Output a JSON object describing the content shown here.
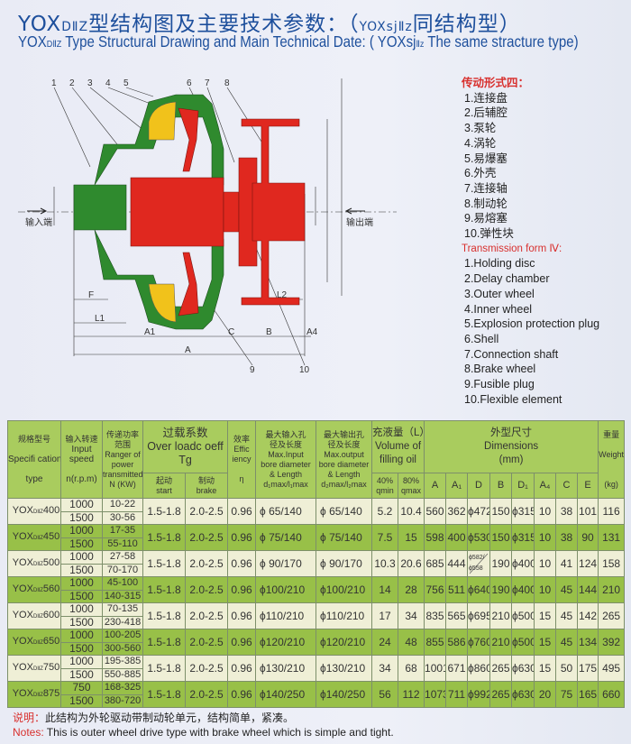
{
  "title": {
    "cn_prefix": "YOX",
    "cn_sub": "DⅡZ",
    "cn_text": "型结构图及主要技术参数：（",
    "cn_paren_prefix": "YOXsj",
    "cn_paren_sub": "Ⅱz",
    "cn_suffix": "同结构型）",
    "en_prefix": "YOX",
    "en_sub": "DⅡZ",
    "en_text": " Type Structural Drawing and Main Technical Date: ( YOXsj",
    "en_paren_sub": "Ⅱz",
    "en_suffix": " The same stracture type)"
  },
  "drawing": {
    "part_numbers": [
      "1",
      "2",
      "3",
      "4",
      "5",
      "6",
      "7",
      "8",
      "9",
      "10"
    ],
    "input_label": "输入端",
    "output_label": "输出端",
    "dims": {
      "F": "F",
      "L1": "L1",
      "A1": "A1",
      "A": "A",
      "C": "C",
      "B": "B",
      "A4": "A4",
      "L2": "L2"
    },
    "colors": {
      "housing": "#2f8a2e",
      "runner": "#e0281f",
      "oil": "#f1c21b"
    }
  },
  "legend": {
    "cn_heading": "传动形式四：",
    "cn_items": [
      "1.连接盘",
      "2.后辅腔",
      "3.泵轮",
      "4.涡轮",
      "5.易爆塞",
      "6.外壳",
      "7.连接轴",
      "8.制动轮",
      "9.易熔塞",
      "10.弹性块"
    ],
    "en_heading": "Transmission form Ⅳ:",
    "en_items": [
      "1.Holding disc",
      "2.Delay chamber",
      "3.Outer wheel",
      "4.Inner wheel",
      "5.Explosion protection plug",
      "6.Shell",
      "7.Connection shaft",
      "8.Brake wheel",
      "9.Fusible plug",
      "10.Flexible element"
    ]
  },
  "table": {
    "headers": {
      "spec": [
        "规格型号",
        "Specifi cation",
        "type"
      ],
      "speed": [
        "输入转速",
        "Input",
        "speed",
        "n(r.p.m)"
      ],
      "power": [
        "传递功率",
        "范围",
        "Ranger of",
        "power",
        "transmitted",
        "N (KW)"
      ],
      "overload": [
        "过载系数",
        "Over loadc oeff",
        "Tg"
      ],
      "start": [
        "起动",
        "start"
      ],
      "brake": [
        "制动",
        "brake"
      ],
      "eff": [
        "效率",
        "Effic",
        "iency",
        "η"
      ],
      "in_bore": [
        "最大输入孔",
        "径及长度",
        "Max.Input",
        "bore diameter",
        "& Length",
        "d₁max/l₁max"
      ],
      "out_bore": [
        "最大输出孔",
        "径及长度",
        "Max.output",
        "bore diameter",
        "& Length",
        "d₂max/l₂max"
      ],
      "oil": [
        "充液量（L）",
        "Volume of",
        "filling oil"
      ],
      "qmin": [
        "40%",
        "qmin"
      ],
      "qmax": [
        "80%",
        "qmax"
      ],
      "dims": [
        "外型尺寸",
        "Dimensions",
        "(mm)"
      ],
      "dim_cols": [
        "A",
        "A₁",
        "D",
        "B",
        "D₁",
        "A₄",
        "C",
        "E"
      ],
      "weight": [
        "重量",
        "Weight",
        "(kg)"
      ]
    },
    "rows": [
      {
        "prefix": "YOX",
        "sub": "DⅡZ",
        "size": "400",
        "speeds": [
          "1000",
          "1500"
        ],
        "powers": [
          "10-22",
          "30-56"
        ],
        "start": "1.5-1.8",
        "brake": "2.0-2.5",
        "eff": "0.96",
        "in_bore": "ϕ 65/140",
        "out_bore": "ϕ 65/140",
        "qmin": "5.2",
        "qmax": "10.4",
        "A": "560",
        "A1": "362",
        "D": "ϕ472",
        "B": "150",
        "D1": "ϕ315",
        "A4": "10",
        "C": "38",
        "E": "101",
        "weight": "116"
      },
      {
        "prefix": "YOX",
        "sub": "DⅡZ",
        "size": "450",
        "speeds": [
          "1000",
          "1500"
        ],
        "powers": [
          "17-35",
          "55-110"
        ],
        "start": "1.5-1.8",
        "brake": "2.0-2.5",
        "eff": "0.96",
        "in_bore": "ϕ 75/140",
        "out_bore": "ϕ 75/140",
        "qmin": "7.5",
        "qmax": "15",
        "A": "598",
        "A1": "400",
        "D": "ϕ530",
        "B": "150",
        "D1": "ϕ315",
        "A4": "10",
        "C": "38",
        "E": "90",
        "weight": "131"
      },
      {
        "prefix": "YOX",
        "sub": "DⅡZ",
        "size": "500",
        "speeds": [
          "1000",
          "1500"
        ],
        "powers": [
          "27-58",
          "70-170"
        ],
        "start": "1.5-1.8",
        "brake": "2.0-2.5",
        "eff": "0.96",
        "in_bore": "ϕ 90/170",
        "out_bore": "ϕ 90/170",
        "qmin": "10.3",
        "qmax": "20.6",
        "A": "685",
        "A1": "444",
        "D": "ϕ582/ϕ558",
        "B": "190",
        "D1": "ϕ400",
        "A4": "10",
        "C": "41",
        "E": "124",
        "weight": "158"
      },
      {
        "prefix": "YOX",
        "sub": "DⅡZ",
        "size": "560",
        "speeds": [
          "1000",
          "1500"
        ],
        "powers": [
          "45-100",
          "140-315"
        ],
        "start": "1.5-1.8",
        "brake": "2.0-2.5",
        "eff": "0.96",
        "in_bore": "ϕ100/210",
        "out_bore": "ϕ100/210",
        "qmin": "14",
        "qmax": "28",
        "A": "756",
        "A1": "511",
        "D": "ϕ640",
        "B": "190",
        "D1": "ϕ400",
        "A4": "10",
        "C": "45",
        "E": "144",
        "weight": "210"
      },
      {
        "prefix": "YOX",
        "sub": "DⅡZ",
        "size": "600",
        "speeds": [
          "1000",
          "1500"
        ],
        "powers": [
          "70-135",
          "230-418"
        ],
        "start": "1.5-1.8",
        "brake": "2.0-2.5",
        "eff": "0.96",
        "in_bore": "ϕ110/210",
        "out_bore": "ϕ110/210",
        "qmin": "17",
        "qmax": "34",
        "A": "835",
        "A1": "565",
        "D": "ϕ695",
        "B": "210",
        "D1": "ϕ500",
        "A4": "15",
        "C": "45",
        "E": "142",
        "weight": "265"
      },
      {
        "prefix": "YOX",
        "sub": "DⅡZ",
        "size": "650",
        "speeds": [
          "1000",
          "1500"
        ],
        "powers": [
          "100-205",
          "300-560"
        ],
        "start": "1.5-1.8",
        "brake": "2.0-2.5",
        "eff": "0.96",
        "in_bore": "ϕ120/210",
        "out_bore": "ϕ120/210",
        "qmin": "24",
        "qmax": "48",
        "A": "855",
        "A1": "586",
        "D": "ϕ760",
        "B": "210",
        "D1": "ϕ500",
        "A4": "15",
        "C": "45",
        "E": "134",
        "weight": "392"
      },
      {
        "prefix": "YOX",
        "sub": "DⅡZ",
        "size": "750",
        "speeds": [
          "1000",
          "1500"
        ],
        "powers": [
          "195-385",
          "550-885"
        ],
        "start": "1.5-1.8",
        "brake": "2.0-2.5",
        "eff": "0.96",
        "in_bore": "ϕ130/210",
        "out_bore": "ϕ130/210",
        "qmin": "34",
        "qmax": "68",
        "A": "1001",
        "A1": "671",
        "D": "ϕ860",
        "B": "265",
        "D1": "ϕ630",
        "A4": "15",
        "C": "50",
        "E": "175",
        "weight": "495"
      },
      {
        "prefix": "YOX",
        "sub": "DⅡZ",
        "size": "875",
        "speeds": [
          "750",
          "1500"
        ],
        "powers": [
          "168-325",
          "380-720"
        ],
        "start": "1.5-1.8",
        "brake": "2.0-2.5",
        "eff": "0.96",
        "in_bore": "ϕ140/250",
        "out_bore": "ϕ140/250",
        "qmin": "56",
        "qmax": "112",
        "A": "1073",
        "A1": "711",
        "D": "ϕ992",
        "B": "265",
        "D1": "ϕ630",
        "A4": "20",
        "C": "75",
        "E": "165",
        "weight": "660"
      }
    ],
    "row_colors": {
      "light": "#efefd6",
      "dark": "#98c048",
      "header": "#a9cc5e"
    }
  },
  "notes": {
    "cn_label": "说明：",
    "cn_text": "此结构为外轮驱动带制动轮单元，结构简单，紧凑。",
    "en_label": "Notes:",
    "en_text": " This is outer wheel drive type with brake wheel which is simple and tight."
  }
}
